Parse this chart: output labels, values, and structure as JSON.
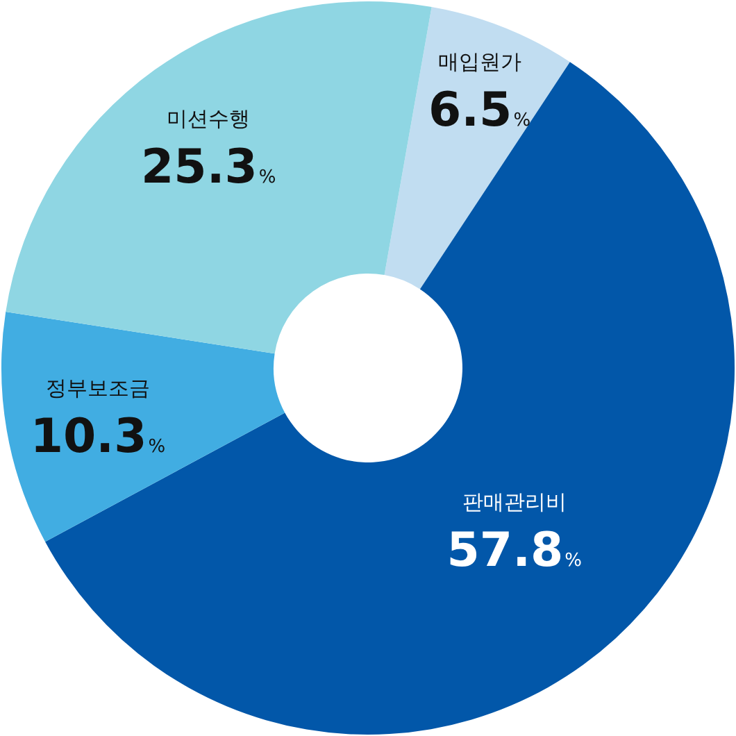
{
  "chart_data": {
    "type": "donut",
    "categories": [
      "매입원가",
      "판매관리비",
      "정부보조금",
      "미션수행"
    ],
    "values": [
      6.5,
      57.8,
      10.3,
      25.3
    ],
    "colors": [
      "#c1ddf1",
      "#0257a9",
      "#41ade2",
      "#8fd6e3"
    ],
    "value_labels": [
      "6.5%",
      "57.8%",
      "10.3%",
      "25.3%"
    ]
  }
}
